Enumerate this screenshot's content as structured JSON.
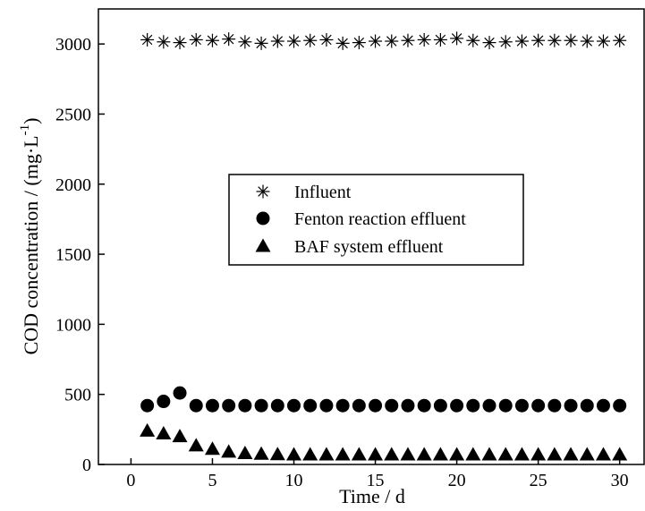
{
  "chart_data": {
    "type": "scatter",
    "xlabel": "Time / d",
    "ylabel": "COD concentration / (mg·L",
    "ylabel_superscript": "-1",
    "ylabel_close": ")",
    "xlim": [
      -2,
      31.5
    ],
    "ylim": [
      0,
      3250
    ],
    "xticks": [
      0,
      5,
      10,
      15,
      20,
      25,
      30
    ],
    "yticks": [
      0,
      500,
      1000,
      1500,
      2000,
      2500,
      3000
    ],
    "grid": false,
    "legend_position": "center",
    "x": [
      1,
      2,
      3,
      4,
      5,
      6,
      7,
      8,
      9,
      10,
      11,
      12,
      13,
      14,
      15,
      16,
      17,
      18,
      19,
      20,
      21,
      22,
      23,
      24,
      25,
      26,
      27,
      28,
      29,
      30
    ],
    "series": [
      {
        "name": "Influent",
        "marker": "asterisk",
        "values": [
          3030,
          3015,
          3010,
          3030,
          3025,
          3035,
          3015,
          3005,
          3020,
          3020,
          3025,
          3030,
          3005,
          3010,
          3020,
          3020,
          3025,
          3030,
          3030,
          3040,
          3025,
          3010,
          3015,
          3020,
          3025,
          3025,
          3025,
          3020,
          3020,
          3025
        ]
      },
      {
        "name": "Fenton reaction effluent",
        "marker": "circle",
        "values": [
          420,
          450,
          510,
          420,
          420,
          420,
          420,
          420,
          420,
          420,
          420,
          420,
          420,
          420,
          420,
          420,
          420,
          420,
          420,
          420,
          420,
          420,
          420,
          420,
          420,
          420,
          420,
          420,
          420,
          420
        ]
      },
      {
        "name": "BAF system effluent",
        "marker": "triangle",
        "values": [
          240,
          220,
          200,
          135,
          110,
          90,
          80,
          75,
          72,
          70,
          70,
          70,
          70,
          70,
          70,
          70,
          70,
          70,
          70,
          70,
          70,
          70,
          70,
          70,
          70,
          70,
          70,
          70,
          70,
          70
        ]
      }
    ]
  }
}
